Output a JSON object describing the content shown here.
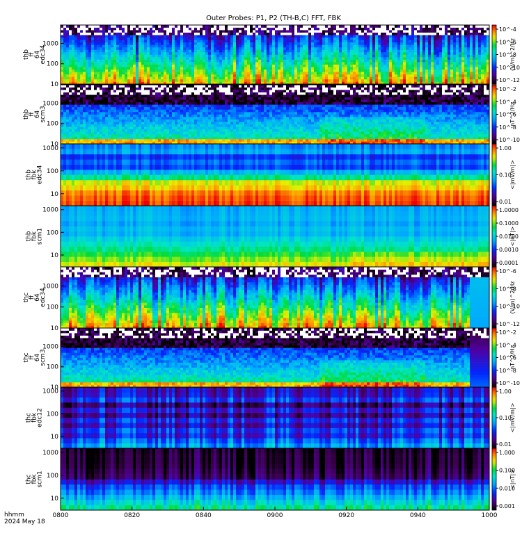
{
  "title": "Outer Probes: P1, P2 (TH-B,C) FFT, FBK",
  "footer": {
    "line1": "hhmm",
    "line2": "2024 May 18"
  },
  "chart_data": {
    "type": "heatmap",
    "x_ticks": [
      "0800",
      "0820",
      "0840",
      "0900",
      "0920",
      "0940",
      "1000"
    ],
    "x_range": [
      "0800",
      "1000"
    ],
    "panels": [
      {
        "label": [
          "thb",
          "ff",
          "64",
          "edc34"
        ],
        "yticks": [
          "10",
          "100",
          "1000"
        ],
        "ylim": [
          10,
          8000
        ],
        "yscale": "log",
        "cbar_ticks": [
          "10^-4",
          "10^-6",
          "10^-8",
          "10^-10",
          "10^-12"
        ],
        "cbar_label": "(V/m)^2/Hz",
        "pattern": "efield_ff"
      },
      {
        "label": [
          "thb",
          "ff",
          "64",
          "scm3"
        ],
        "yticks": [
          "10",
          "100",
          "1000"
        ],
        "ylim": [
          10,
          8000
        ],
        "yscale": "log",
        "cbar_ticks": [
          "10^-2",
          "10^-4",
          "10^-6",
          "10^-8",
          "10^-10"
        ],
        "cbar_label": "nT^2/Hz",
        "pattern": "scm_ff"
      },
      {
        "label": [
          "thb",
          "fbk",
          "edc34"
        ],
        "yticks": [
          "10",
          "100",
          "1000"
        ],
        "ylim": [
          3,
          1500
        ],
        "yscale": "log",
        "cbar_ticks": [
          "1.00",
          "0.10",
          "0.01"
        ],
        "cbar_label": "<|mV/m|>",
        "pattern": "efield_fbk"
      },
      {
        "label": [
          "thb",
          "fbk",
          "scm1"
        ],
        "yticks": [
          "10",
          "100",
          "1000"
        ],
        "ylim": [
          3,
          1500
        ],
        "yscale": "log",
        "cbar_ticks": [
          "1.0000",
          "0.1000",
          "0.0100",
          "0.0010",
          "0.0001"
        ],
        "cbar_label": "<|nT|>",
        "pattern": "scm_fbk"
      },
      {
        "label": [
          "thc",
          "ff",
          "64",
          "edc34"
        ],
        "yticks": [
          "10",
          "100",
          "1000"
        ],
        "ylim": [
          10,
          8000
        ],
        "yscale": "log",
        "cbar_ticks": [
          "10^-6",
          "10^-8",
          "10^-10",
          "10^-12"
        ],
        "cbar_label": "(V/m)^2/Hz",
        "pattern": "efield_ff"
      },
      {
        "label": [
          "thc",
          "ff",
          "64",
          "scm3"
        ],
        "yticks": [
          "10",
          "100",
          "1000"
        ],
        "ylim": [
          10,
          8000
        ],
        "yscale": "log",
        "cbar_ticks": [
          "10^-2",
          "10^-4",
          "10^-6",
          "10^-8",
          "10^-10"
        ],
        "cbar_label": "nT^2/Hz",
        "pattern": "scm_ff"
      },
      {
        "label": [
          "thc",
          "fbk",
          "edc12"
        ],
        "yticks": [
          "10",
          "100",
          "1000"
        ],
        "ylim": [
          3,
          1500
        ],
        "yscale": "log",
        "cbar_ticks": [
          "1.00",
          "0.10",
          "0.01"
        ],
        "cbar_label": "<|mV/m|>",
        "pattern": "efield_fbk_low"
      },
      {
        "label": [
          "thc",
          "fbk",
          "scm1"
        ],
        "yticks": [
          "10",
          "100",
          "1000"
        ],
        "ylim": [
          3,
          1500
        ],
        "yscale": "log",
        "cbar_ticks": [
          "1.000",
          "0.100",
          "0.010",
          "0.001"
        ],
        "cbar_label": "<|nT|>",
        "pattern": "scm_fbk_low"
      }
    ]
  }
}
